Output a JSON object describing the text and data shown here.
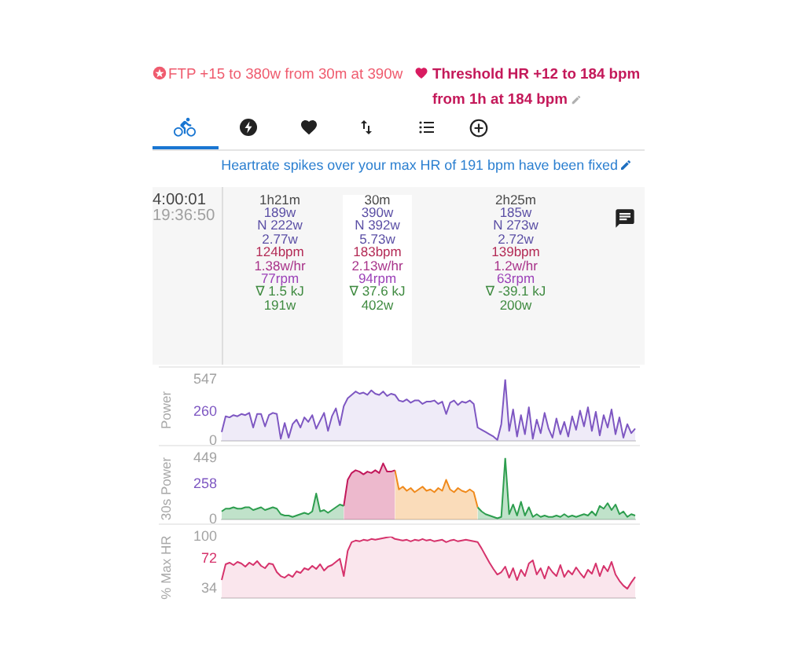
{
  "chart_data": [
    {
      "type": "other",
      "title": "FTP +15 to 380w from 30m at 390w",
      "subtitle": "Threshold HR +12 to 184 bpm from 1h at 184 bpm",
      "annotations": [
        "Heartrate spikes over your max HR of 191 bpm have been fixed",
        "4:00:01",
        "19:36:50",
        "1h21m",
        "189w",
        "N 222w",
        "2.77w",
        "124bpm",
        "1.38w/hr",
        "77rpm",
        "∇ 1.5 kJ",
        "191w",
        "30m",
        "390w",
        "N 392w",
        "5.73w",
        "183bpm",
        "2.13w/hr",
        "94rpm",
        "∇ 37.6 kJ",
        "402w",
        "2h25m",
        "185w",
        "N 273w",
        "2.72w",
        "139bpm",
        "1.2w/hr",
        "63rpm",
        "∇ -39.1 kJ",
        "200w"
      ]
    },
    {
      "type": "area",
      "ylabel": "Power",
      "tick_labels": "y",
      "categories": [
        null,
        null,
        null,
        null,
        null,
        null,
        null,
        null,
        null,
        null,
        null,
        null,
        null,
        null,
        null,
        null,
        null,
        null,
        null,
        null,
        null,
        null,
        null,
        null,
        null,
        null,
        null,
        null,
        null,
        null,
        null,
        null,
        null,
        null,
        null,
        null,
        null,
        null,
        null,
        null,
        null,
        null,
        null,
        null,
        null,
        null,
        null,
        null,
        null,
        null,
        null,
        null,
        null,
        null,
        null,
        null,
        null,
        null,
        null,
        null,
        null,
        null,
        null,
        null,
        null,
        null,
        null,
        null,
        null,
        null,
        null,
        null,
        null,
        null,
        null,
        null,
        null,
        null,
        null,
        null,
        null,
        null,
        null,
        null,
        null,
        null,
        null,
        null,
        null,
        null,
        null,
        null,
        null,
        null,
        null,
        null,
        null,
        null,
        null,
        null,
        null,
        null,
        null,
        null,
        null,
        null
      ],
      "ylim": [
        0,
        547
      ],
      "yticks": [
        0,
        260,
        547
      ],
      "series": [
        {
          "color": "#7e57c2",
          "values": [
            80,
            220,
            210,
            230,
            220,
            240,
            230,
            250,
            120,
            240,
            240,
            130,
            230,
            250,
            240,
            20,
            160,
            30,
            150,
            190,
            120,
            210,
            170,
            230,
            110,
            180,
            250,
            90,
            220,
            290,
            140,
            310,
            380,
            410,
            440,
            420,
            430,
            410,
            450,
            420,
            410,
            440,
            400,
            420,
            410,
            360,
            350,
            370,
            340,
            360,
            360,
            330,
            350,
            350,
            360,
            330,
            350,
            240,
            340,
            360,
            320,
            350,
            340,
            360,
            330,
            120,
            100,
            80,
            60,
            40,
            10,
            150,
            547,
            90,
            280,
            40,
            230,
            60,
            300,
            20,
            190,
            70,
            250,
            110,
            30,
            200,
            60,
            170,
            40,
            220,
            100,
            270,
            130,
            300,
            90,
            260,
            50,
            230,
            120,
            280,
            60,
            210,
            30,
            150,
            70,
            110
          ]
        }
      ]
    },
    {
      "type": "area",
      "ylabel": "30s Power",
      "tick_labels": "y",
      "categories": [
        null,
        null,
        null,
        null,
        null,
        null,
        null,
        null,
        null,
        null,
        null,
        null,
        null,
        null,
        null,
        null,
        null,
        null,
        null,
        null,
        null,
        null,
        null,
        null,
        null,
        null,
        null,
        null,
        null,
        null,
        null,
        null,
        null,
        null,
        null,
        null,
        null,
        null,
        null,
        null,
        null,
        null,
        null,
        null,
        null,
        null,
        null,
        null,
        null,
        null,
        null,
        null,
        null,
        null,
        null,
        null,
        null,
        null,
        null,
        null,
        null,
        null,
        null,
        null,
        null,
        null,
        null,
        null,
        null,
        null,
        null,
        null,
        null,
        null,
        null,
        null,
        null,
        null,
        null,
        null,
        null,
        null,
        null,
        null,
        null,
        null,
        null,
        null,
        null,
        null,
        null,
        null,
        null,
        null,
        null,
        null,
        null,
        null,
        null,
        null,
        null,
        null,
        null,
        null,
        null,
        null
      ],
      "ylim": [
        0,
        449
      ],
      "yticks": [
        0,
        258,
        449
      ],
      "series": [
        {
          "color": "#2e9e4f",
          "values": [
            60,
            80,
            80,
            90,
            80,
            80,
            90,
            90,
            70,
            80,
            90,
            70,
            80,
            90,
            80,
            40,
            30,
            30,
            20,
            30,
            40,
            50,
            40,
            60,
            190,
            60,
            70,
            50,
            70,
            90,
            110,
            100,
            null,
            null,
            null,
            null,
            null,
            null,
            null,
            null,
            null,
            null,
            null,
            null,
            null,
            null,
            null,
            null,
            null,
            null,
            null,
            null,
            null,
            null,
            null,
            null,
            null,
            null,
            null,
            null,
            null,
            null,
            null,
            null,
            null,
            90,
            60,
            40,
            30,
            20,
            10,
            20,
            449,
            40,
            110,
            30,
            130,
            30,
            90,
            20,
            40,
            20,
            30,
            20,
            20,
            30,
            20,
            40,
            20,
            30,
            20,
            30,
            40,
            30,
            60,
            30,
            100,
            80,
            120,
            70,
            110,
            40,
            60,
            20,
            40,
            30
          ]
        },
        {
          "color": "#c2185b",
          "values": [
            null,
            null,
            null,
            null,
            null,
            null,
            null,
            null,
            null,
            null,
            null,
            null,
            null,
            null,
            null,
            null,
            null,
            null,
            null,
            null,
            null,
            null,
            null,
            null,
            null,
            null,
            null,
            null,
            null,
            null,
            null,
            100,
            290,
            340,
            360,
            350,
            330,
            350,
            340,
            360,
            340,
            410,
            350,
            350,
            360,
            null,
            null,
            null,
            null,
            null,
            null,
            null,
            null,
            null,
            null,
            null,
            null,
            null,
            null,
            null,
            null,
            null,
            null,
            null,
            null,
            null,
            null,
            null,
            null,
            null,
            null,
            null,
            null,
            null,
            null,
            null,
            null,
            null,
            null,
            null,
            null,
            null,
            null,
            null,
            null,
            null,
            null,
            null,
            null,
            null,
            null,
            null,
            null,
            null,
            null,
            null,
            null,
            null,
            null,
            null,
            null,
            null,
            null,
            null,
            null,
            null
          ]
        },
        {
          "color": "#f08a1c",
          "values": [
            null,
            null,
            null,
            null,
            null,
            null,
            null,
            null,
            null,
            null,
            null,
            null,
            null,
            null,
            null,
            null,
            null,
            null,
            null,
            null,
            null,
            null,
            null,
            null,
            null,
            null,
            null,
            null,
            null,
            null,
            null,
            null,
            null,
            null,
            null,
            null,
            null,
            null,
            null,
            null,
            null,
            null,
            null,
            null,
            360,
            220,
            240,
            210,
            230,
            200,
            220,
            240,
            210,
            220,
            200,
            230,
            210,
            290,
            220,
            200,
            230,
            210,
            200,
            220,
            200,
            90,
            null,
            null,
            null,
            null,
            null,
            null,
            null,
            null,
            null,
            null,
            null,
            null,
            null,
            null,
            null,
            null,
            null,
            null,
            null,
            null,
            null,
            null,
            null,
            null,
            null,
            null,
            null,
            null,
            null,
            null,
            null,
            null,
            null,
            null,
            null,
            null,
            null,
            null,
            null,
            null
          ]
        }
      ]
    },
    {
      "type": "area",
      "ylabel": "% Max HR",
      "tick_labels": "y",
      "categories": [
        null,
        null,
        null,
        null,
        null,
        null,
        null,
        null,
        null,
        null,
        null,
        null,
        null,
        null,
        null,
        null,
        null,
        null,
        null,
        null,
        null,
        null,
        null,
        null,
        null,
        null,
        null,
        null,
        null,
        null,
        null,
        null,
        null,
        null,
        null,
        null,
        null,
        null,
        null,
        null,
        null,
        null,
        null,
        null,
        null,
        null,
        null,
        null,
        null,
        null,
        null,
        null,
        null,
        null,
        null,
        null,
        null,
        null,
        null,
        null,
        null,
        null,
        null,
        null,
        null,
        null,
        null,
        null,
        null,
        null,
        null,
        null,
        null,
        null,
        null,
        null,
        null,
        null,
        null,
        null,
        null,
        null,
        null,
        null,
        null,
        null,
        null,
        null,
        null,
        null,
        null,
        null,
        null,
        null,
        null,
        null,
        null,
        null,
        null,
        null,
        null,
        null,
        null,
        null,
        null,
        null
      ],
      "ylim": [
        22,
        100
      ],
      "yticks": [
        34,
        72,
        100
      ],
      "series": [
        {
          "color": "#d6336c",
          "values": [
            45,
            65,
            67,
            64,
            68,
            66,
            62,
            67,
            64,
            69,
            63,
            60,
            66,
            65,
            55,
            50,
            48,
            52,
            49,
            56,
            54,
            60,
            58,
            63,
            59,
            65,
            57,
            62,
            64,
            68,
            72,
            50,
            82,
            93,
            95,
            94,
            96,
            95,
            97,
            96,
            97,
            98,
            99,
            100,
            97,
            96,
            95,
            96,
            94,
            96,
            95,
            97,
            95,
            96,
            94,
            95,
            96,
            93,
            95,
            96,
            94,
            95,
            96,
            95,
            94,
            93,
            85,
            76,
            67,
            59,
            52,
            55,
            62,
            48,
            60,
            45,
            58,
            50,
            66,
            70,
            52,
            60,
            47,
            62,
            55,
            50,
            64,
            49,
            57,
            52,
            61,
            54,
            48,
            58,
            53,
            66,
            50,
            63,
            56,
            68,
            52,
            44,
            38,
            34,
            42,
            49
          ]
        }
      ]
    }
  ]
}
